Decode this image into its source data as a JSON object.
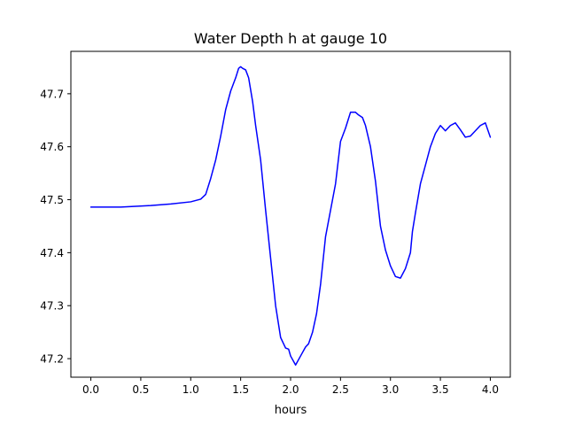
{
  "chart_data": {
    "type": "line",
    "title": "Water Depth h at gauge 10",
    "xlabel": "hours",
    "ylabel": "",
    "xlim": [
      -0.2,
      4.2
    ],
    "ylim": [
      47.165,
      47.78
    ],
    "xticks": [
      0.0,
      0.5,
      1.0,
      1.5,
      2.0,
      2.5,
      3.0,
      3.5,
      4.0
    ],
    "xtick_labels": [
      "0.0",
      "0.5",
      "1.0",
      "1.5",
      "2.0",
      "2.5",
      "3.0",
      "3.5",
      "4.0"
    ],
    "yticks": [
      47.2,
      47.3,
      47.4,
      47.5,
      47.6,
      47.7
    ],
    "ytick_labels": [
      "47.2",
      "47.3",
      "47.4",
      "47.5",
      "47.6",
      "47.7"
    ],
    "grid": false,
    "legend": false,
    "series": [
      {
        "color": "#0000ff",
        "x": [
          0.0,
          0.3,
          0.6,
          0.8,
          1.0,
          1.1,
          1.15,
          1.2,
          1.25,
          1.3,
          1.35,
          1.4,
          1.45,
          1.48,
          1.5,
          1.52,
          1.55,
          1.58,
          1.62,
          1.65,
          1.7,
          1.75,
          1.8,
          1.85,
          1.9,
          1.95,
          1.98,
          2.0,
          2.05,
          2.1,
          2.15,
          2.18,
          2.22,
          2.26,
          2.3,
          2.35,
          2.4,
          2.45,
          2.5,
          2.55,
          2.6,
          2.65,
          2.68,
          2.72,
          2.75,
          2.8,
          2.85,
          2.9,
          2.95,
          3.0,
          3.05,
          3.1,
          3.15,
          3.2,
          3.22,
          3.25,
          3.3,
          3.35,
          3.4,
          3.45,
          3.5,
          3.55,
          3.6,
          3.65,
          3.7,
          3.75,
          3.8,
          3.85,
          3.9,
          3.95,
          4.0
        ],
        "y": [
          47.486,
          47.486,
          47.489,
          47.492,
          47.496,
          47.501,
          47.51,
          47.54,
          47.575,
          47.62,
          47.67,
          47.705,
          47.73,
          47.748,
          47.751,
          47.748,
          47.745,
          47.73,
          47.685,
          47.64,
          47.575,
          47.48,
          47.39,
          47.3,
          47.24,
          47.22,
          47.218,
          47.205,
          47.188,
          47.205,
          47.222,
          47.228,
          47.25,
          47.285,
          47.34,
          47.43,
          47.48,
          47.53,
          47.61,
          47.635,
          47.665,
          47.665,
          47.66,
          47.655,
          47.64,
          47.6,
          47.535,
          47.45,
          47.405,
          47.375,
          47.355,
          47.352,
          47.37,
          47.4,
          47.44,
          47.475,
          47.53,
          47.565,
          47.6,
          47.625,
          47.64,
          47.63,
          47.64,
          47.645,
          47.632,
          47.618,
          47.62,
          47.63,
          47.64,
          47.645,
          47.618
        ]
      }
    ]
  }
}
